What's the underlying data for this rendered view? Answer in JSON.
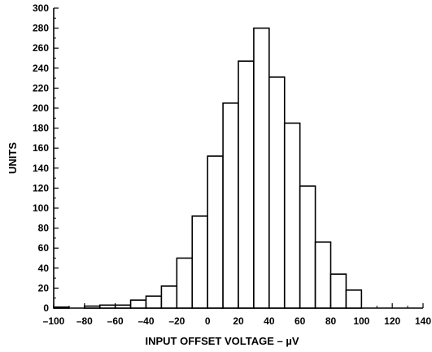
{
  "chart_data": {
    "type": "bar",
    "title": "",
    "xlabel": "INPUT OFFSET VOLTAGE – µV",
    "ylabel": "UNITS",
    "xlim": [
      -100,
      140
    ],
    "ylim": [
      0,
      300
    ],
    "x_ticks": [
      -100,
      -80,
      -60,
      -40,
      -20,
      0,
      20,
      40,
      60,
      80,
      100,
      120,
      140
    ],
    "x_tick_labels": [
      "–100",
      "–80",
      "–60",
      "–40",
      "–20",
      "0",
      "20",
      "40",
      "60",
      "80",
      "100",
      "120",
      "140"
    ],
    "y_ticks": [
      0,
      20,
      40,
      60,
      80,
      100,
      120,
      140,
      160,
      180,
      200,
      220,
      240,
      260,
      280,
      300
    ],
    "y_tick_labels": [
      "0",
      "20",
      "40",
      "60",
      "80",
      "100",
      "120",
      "140",
      "160",
      "180",
      "200",
      "220",
      "240",
      "260",
      "280",
      "300"
    ],
    "bin_width": 10,
    "bin_starts": [
      -100,
      -90,
      -80,
      -70,
      -60,
      -50,
      -40,
      -30,
      -20,
      -10,
      0,
      10,
      20,
      30,
      40,
      50,
      60,
      70,
      80,
      90
    ],
    "values": [
      1,
      0,
      2,
      3,
      3,
      8,
      12,
      22,
      50,
      92,
      152,
      205,
      247,
      280,
      231,
      185,
      122,
      66,
      34,
      18
    ],
    "grid": false,
    "bar_fill": "#ffffff",
    "bar_stroke": "#000000"
  }
}
